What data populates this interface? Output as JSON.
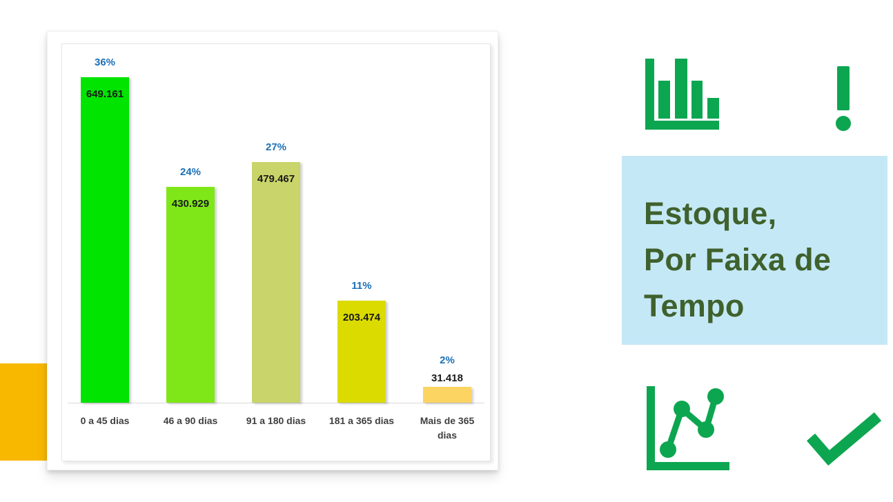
{
  "colors": {
    "icon_green": "#0DA650",
    "percent_blue": "#1B6FB5",
    "value_text": "#1A1A1A",
    "axis_label": "#3F3F3F",
    "axis_line": "#D8D8D8",
    "title_bg": "#C5E8F6",
    "title_text": "#3F612D",
    "accent_orange": "#F8B800",
    "card_bg": "#FFFFFF"
  },
  "chart_data": {
    "type": "bar",
    "title": "Estoque, Por Faixa de Tempo",
    "categories": [
      "0 a 45 dias",
      "46 a 90 dias",
      "91 a 180 dias",
      "181 a 365 dias",
      "Mais de 365 dias"
    ],
    "values": [
      649161,
      430929,
      479467,
      203474,
      31418
    ],
    "value_labels": [
      "649.161",
      "430.929",
      "479.467",
      "203.474",
      "31.418"
    ],
    "percent_labels": [
      "36%",
      "24%",
      "27%",
      "11%",
      "2%"
    ],
    "bar_colors": [
      "#00E400",
      "#7FE717",
      "#C9D46A",
      "#DBDB00",
      "#FCD462"
    ],
    "xlabel": "",
    "ylabel": "",
    "grid": false,
    "legend": false,
    "y_axis_visible": false
  },
  "title_panel": {
    "lines": [
      "Estoque,",
      "Por Faixa de",
      "Tempo"
    ]
  },
  "icons": {
    "top_left": "bar-chart-icon",
    "top_right": "exclamation-icon",
    "bottom_left": "line-chart-icon",
    "bottom_right": "checkmark-icon"
  }
}
